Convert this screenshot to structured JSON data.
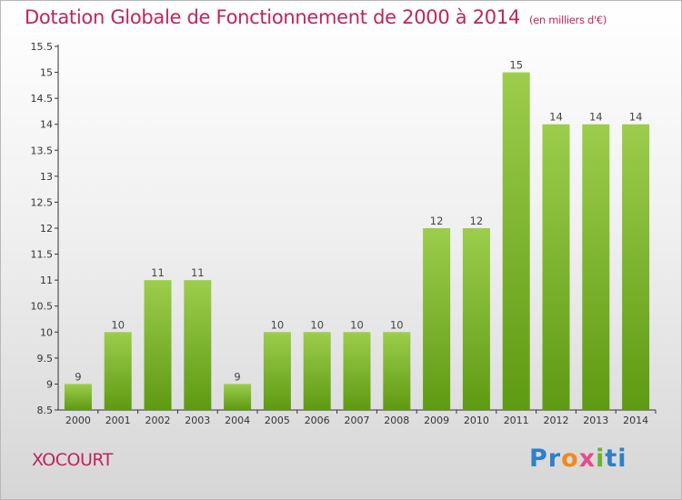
{
  "header": {
    "title": "Dotation Globale de Fonctionnement de 2000 à 2014",
    "subtitle": "(en milliers d'€)"
  },
  "footer": {
    "place": "XOCOURT",
    "logo": [
      "P",
      "r",
      "o",
      "x",
      "i",
      "ti"
    ]
  },
  "colors": {
    "bar_top": "#9ccd4c",
    "bar_bottom": "#5e9a12",
    "text_accent": "#c0245e"
  },
  "chart_data": {
    "type": "bar",
    "title": "Dotation Globale de Fonctionnement de 2000 à 2014",
    "subtitle": "(en milliers d'€)",
    "categories": [
      "2000",
      "2001",
      "2002",
      "2003",
      "2004",
      "2005",
      "2006",
      "2007",
      "2008",
      "2009",
      "2010",
      "2011",
      "2012",
      "2013",
      "2014"
    ],
    "values": [
      9,
      10,
      11,
      11,
      9,
      10,
      10,
      10,
      10,
      12,
      12,
      15,
      14,
      14,
      14
    ],
    "labels": [
      "9",
      "10",
      "11",
      "11",
      "9",
      "10",
      "10",
      "10",
      "10",
      "12",
      "12",
      "15",
      "14",
      "14",
      "14"
    ],
    "ylim": [
      8.5,
      15.5
    ],
    "yticks": [
      8.5,
      9,
      9.5,
      10,
      10.5,
      11,
      11.5,
      12,
      12.5,
      13,
      13.5,
      14,
      14.5,
      15,
      15.5
    ],
    "ytick_labels": [
      "8.5",
      "9",
      "9.5",
      "10",
      "10.5",
      "11",
      "11.5",
      "12",
      "12.5",
      "13",
      "13.5",
      "14",
      "14.5",
      "15",
      "15.5"
    ],
    "grid": false
  }
}
